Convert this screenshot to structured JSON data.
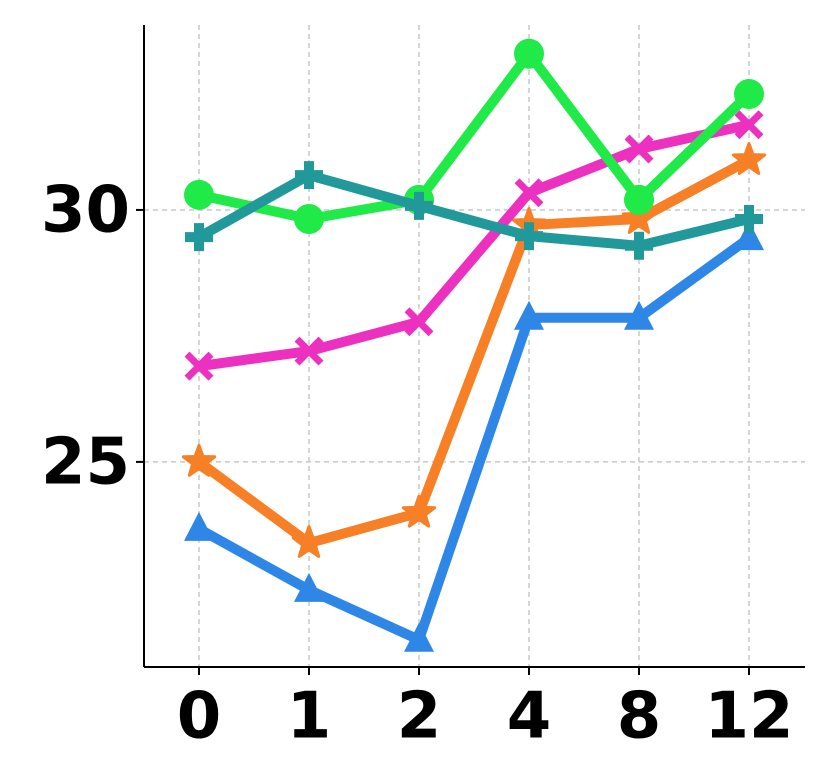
{
  "chart_data": {
    "type": "line",
    "categories": [
      "0",
      "1",
      "2",
      "4",
      "8",
      "12"
    ],
    "series": [
      {
        "color": "#2e86e6",
        "marker": "triangle",
        "values": [
          23.67,
          22.46,
          21.47,
          27.86,
          27.86,
          29.44
        ]
      },
      {
        "color": "#f77f25",
        "marker": "star",
        "values": [
          25.0,
          23.39,
          23.99,
          29.7,
          29.82,
          30.99
        ]
      },
      {
        "color": "#ec31c0",
        "marker": "x",
        "values": [
          26.9,
          27.2,
          27.78,
          30.34,
          31.21,
          31.69
        ]
      },
      {
        "color": "#1fea48",
        "marker": "circle",
        "values": [
          30.3,
          29.82,
          30.2,
          33.1,
          30.2,
          32.3
        ]
      },
      {
        "color": "#21999b",
        "marker": "plus",
        "values": [
          29.46,
          30.69,
          30.08,
          29.48,
          29.29,
          29.82
        ]
      }
    ],
    "ylim": [
      20.93,
      33.67
    ],
    "yticks": [
      25,
      30
    ],
    "grid": true
  }
}
